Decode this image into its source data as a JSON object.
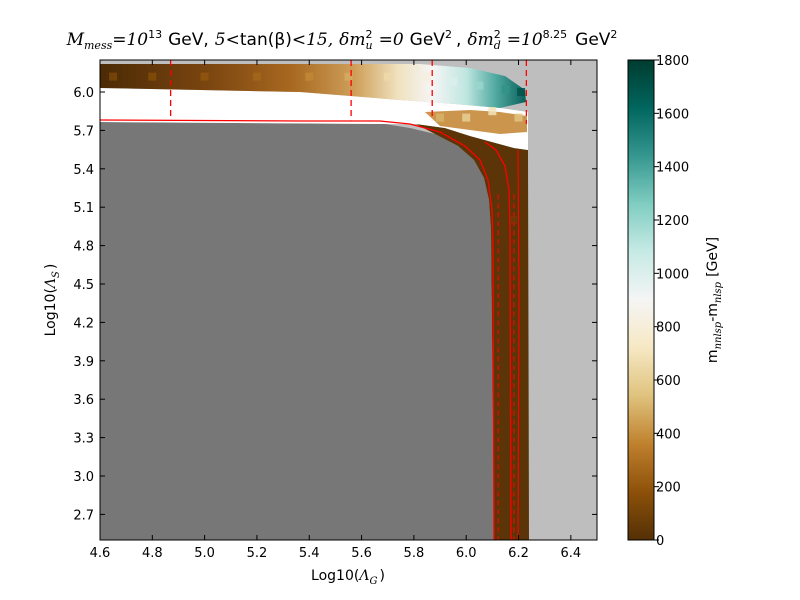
{
  "chart_data": {
    "type": "heatmap",
    "title": {
      "m_sub": "mess",
      "eq": "=",
      "ten": "10",
      "mess_exp": "13",
      "gev1": "GeV,",
      "five": "5",
      "lt": "<",
      "tanb": "tan(β)",
      "fifteen": "15,",
      "dmu_sub": "u",
      "dmu_eq": "=0",
      "gev2": "GeV",
      "sq": "2",
      "comma": ",",
      "dmd_sub": "d",
      "dmd_exp": "8.25",
      "gev3": "GeV"
    },
    "xlabel": {
      "pre": "Log10(",
      "sym": "Λ",
      "sub": "G",
      "post": ")"
    },
    "ylabel": {
      "pre": "Log10(",
      "sym": "Λ",
      "sub": "S",
      "post": ")"
    },
    "colorbar_label": {
      "m": "m",
      "sub1": "nnlsp",
      "mid": "-m",
      "sub2": "nlsp",
      "unit": "[GeV]"
    },
    "xlim": [
      4.6,
      6.5
    ],
    "ylim": [
      2.5,
      6.25
    ],
    "xticks": [
      "4.6",
      "4.8",
      "5.0",
      "5.2",
      "5.4",
      "5.6",
      "5.8",
      "6.0",
      "6.2",
      "6.4"
    ],
    "yticks": [
      "2.7",
      "3.0",
      "3.3",
      "3.6",
      "3.9",
      "4.2",
      "4.5",
      "4.8",
      "5.1",
      "5.4",
      "5.7",
      "6.0"
    ],
    "colorbar_range": [
      0,
      1800
    ],
    "colorbar_ticks": [
      "0",
      "200",
      "400",
      "600",
      "800",
      "1000",
      "1200",
      "1400",
      "1600",
      "1800"
    ],
    "colormap": [
      "#543005",
      "#8c510a",
      "#bf812d",
      "#dfc27d",
      "#f6e8c3",
      "#f5f5f5",
      "#c7eae5",
      "#80cdc1",
      "#35978f",
      "#01665e",
      "#003c30"
    ],
    "background_color": "#bebebe",
    "excluded_region_color": "#777777",
    "contour_color": "#ff0000",
    "dashed_vertical_lines_x": [
      4.87,
      5.56,
      5.87,
      6.23
    ],
    "solid_contour_x": [
      6.13,
      6.19
    ],
    "band_points": [
      {
        "x": 4.65,
        "y": 6.12,
        "v": 120
      },
      {
        "x": 4.8,
        "y": 6.12,
        "v": 150
      },
      {
        "x": 5.0,
        "y": 6.12,
        "v": 200
      },
      {
        "x": 5.2,
        "y": 6.12,
        "v": 260
      },
      {
        "x": 5.4,
        "y": 6.12,
        "v": 380
      },
      {
        "x": 5.55,
        "y": 6.12,
        "v": 480
      },
      {
        "x": 5.7,
        "y": 6.12,
        "v": 650
      },
      {
        "x": 5.85,
        "y": 6.12,
        "v": 820
      },
      {
        "x": 5.95,
        "y": 6.08,
        "v": 1000
      },
      {
        "x": 6.05,
        "y": 6.05,
        "v": 1200
      },
      {
        "x": 6.15,
        "y": 6.02,
        "v": 1450
      },
      {
        "x": 6.21,
        "y": 6.0,
        "v": 1700
      },
      {
        "x": 5.9,
        "y": 5.8,
        "v": 500
      },
      {
        "x": 6.0,
        "y": 5.8,
        "v": 600
      },
      {
        "x": 6.1,
        "y": 5.85,
        "v": 700
      },
      {
        "x": 6.2,
        "y": 5.8,
        "v": 550
      },
      {
        "x": 6.18,
        "y": 5.0,
        "v": 60
      },
      {
        "x": 6.18,
        "y": 3.5,
        "v": 40
      }
    ]
  }
}
